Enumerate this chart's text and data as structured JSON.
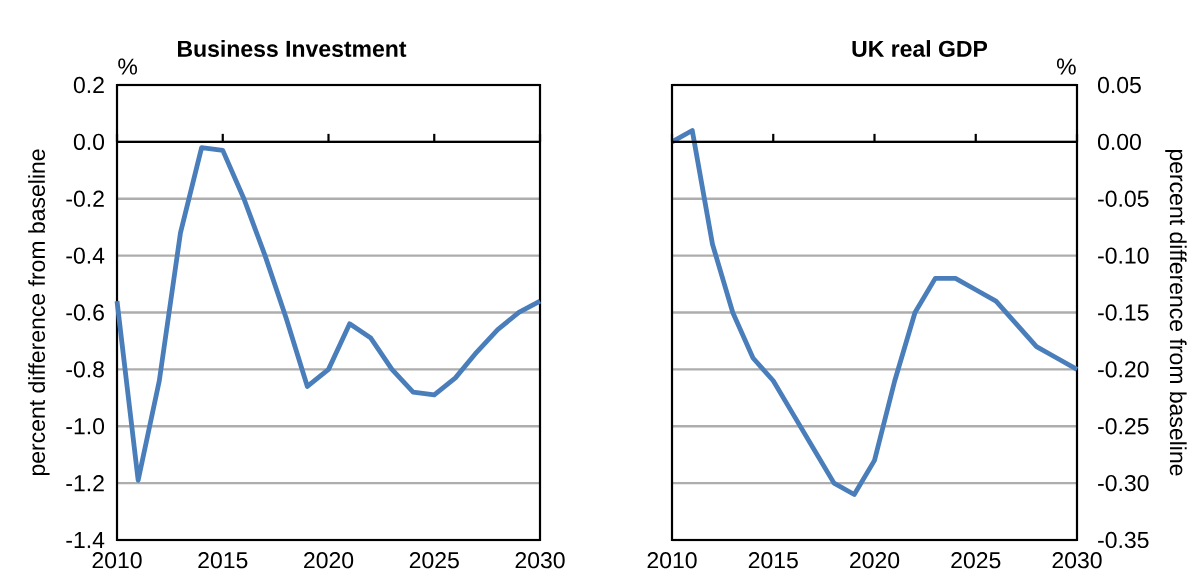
{
  "chart_data": [
    {
      "type": "line",
      "title": "Business Investment",
      "ylabel": "percent difference from baseline",
      "annotations": [
        "%"
      ],
      "x": [
        2010,
        2011,
        2012,
        2013,
        2014,
        2015,
        2016,
        2017,
        2018,
        2019,
        2020,
        2021,
        2022,
        2023,
        2024,
        2025,
        2026,
        2027,
        2028,
        2029,
        2030
      ],
      "series": [
        {
          "color": "#4a7ebb",
          "values": [
            -0.56,
            -1.19,
            -0.84,
            -0.32,
            -0.02,
            -0.03,
            -0.2,
            -0.4,
            -0.62,
            -0.86,
            -0.8,
            -0.64,
            -0.69,
            -0.8,
            -0.88,
            -0.89,
            -0.83,
            -0.74,
            -0.66,
            -0.6,
            -0.56
          ]
        }
      ],
      "xlim": [
        2010,
        2030
      ],
      "xticks": [
        2010,
        2015,
        2020,
        2025,
        2030
      ],
      "ylim": [
        -1.4,
        0.2
      ],
      "yticks": [
        {
          "value": -1.4,
          "label": "-1.4"
        },
        {
          "value": -1.2,
          "label": "-1.2"
        },
        {
          "value": -1.0,
          "label": "-1.0"
        },
        {
          "value": -0.8,
          "label": "-0.8"
        },
        {
          "value": -0.6,
          "label": "-0.6"
        },
        {
          "value": -0.4,
          "label": "-0.4"
        },
        {
          "value": -0.2,
          "label": "-0.2"
        },
        {
          "value": 0,
          "label": "0.0"
        },
        {
          "value": 0.2,
          "label": "0.2"
        }
      ],
      "grid": "y",
      "marker": "none",
      "line_style": "solid"
    },
    {
      "type": "line",
      "title": "UK real GDP",
      "y2label": "percent difference from baseline",
      "annotations": [
        "%"
      ],
      "x": [
        2010,
        2011,
        2012,
        2013,
        2014,
        2015,
        2016,
        2017,
        2018,
        2019,
        2020,
        2021,
        2022,
        2023,
        2024,
        2025,
        2026,
        2027,
        2028,
        2029,
        2030
      ],
      "series": [
        {
          "color": "#4a7ebb",
          "axis": "y2",
          "values": [
            0,
            0.01,
            -0.09,
            -0.15,
            -0.19,
            -0.21,
            -0.24,
            -0.27,
            -0.3,
            -0.31,
            -0.28,
            -0.21,
            -0.15,
            -0.12,
            -0.12,
            -0.13,
            -0.14,
            -0.16,
            -0.18,
            -0.19,
            -0.2
          ]
        }
      ],
      "xlim": [
        2010,
        2030
      ],
      "xticks": [
        2010,
        2015,
        2020,
        2025,
        2030
      ],
      "y2lim": [
        -0.35,
        0.05
      ],
      "y2ticks": [
        {
          "value": -0.35,
          "label": "-0.35"
        },
        {
          "value": -0.3,
          "label": "-0.30"
        },
        {
          "value": -0.25,
          "label": "-0.25"
        },
        {
          "value": -0.2,
          "label": "-0.20"
        },
        {
          "value": -0.15,
          "label": "-0.15"
        },
        {
          "value": -0.1,
          "label": "-0.10"
        },
        {
          "value": -0.05,
          "label": "-0.05"
        },
        {
          "value": 0,
          "label": "0.00"
        },
        {
          "value": 0.05,
          "label": "0.05"
        }
      ],
      "grid": "y",
      "marker": "none",
      "line_style": "solid"
    }
  ]
}
